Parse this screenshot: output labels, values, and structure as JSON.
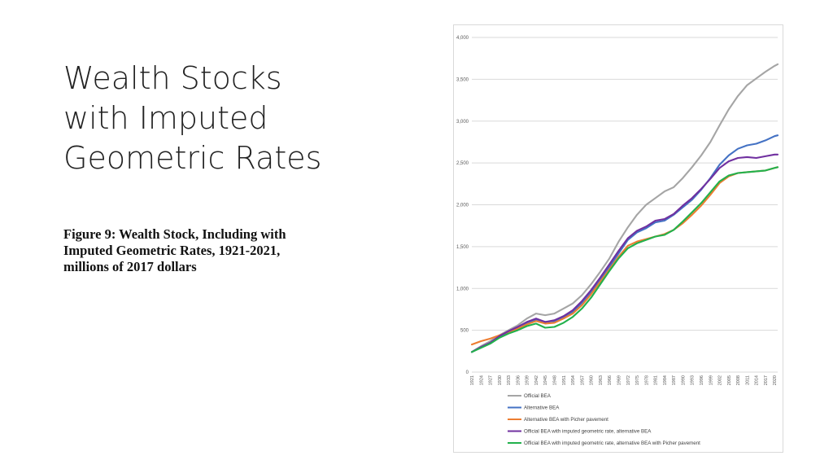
{
  "slide": {
    "title_lines": [
      "Wealth Stocks",
      "with Imputed",
      "Geometric Rates"
    ],
    "caption_lines": [
      "Figure 9: Wealth Stock, Including with",
      "Imputed Geometric Rates, 1921-2021,",
      "millions of 2017 dollars"
    ]
  },
  "chart_data": {
    "type": "line",
    "title": "",
    "xlabel": "",
    "ylabel": "",
    "ylim": [
      0,
      4000
    ],
    "y_ticks": [
      0,
      500,
      1000,
      1500,
      2000,
      2500,
      3000,
      3500,
      4000
    ],
    "y_tick_labels": [
      "0",
      "500",
      "1,000",
      "1,500",
      "2,000",
      "2,500",
      "3,000",
      "3,500",
      "4,000"
    ],
    "x_tick_labels": [
      "1921",
      "1924",
      "1927",
      "1930",
      "1933",
      "1936",
      "1939",
      "1942",
      "1945",
      "1948",
      "1951",
      "1954",
      "1957",
      "1960",
      "1963",
      "1966",
      "1969",
      "1972",
      "1975",
      "1978",
      "1981",
      "1984",
      "1987",
      "1990",
      "1993",
      "1996",
      "1999",
      "2002",
      "2005",
      "2008",
      "2011",
      "2014",
      "2017",
      "2020"
    ],
    "grid": true,
    "legend_position": "bottom",
    "x": [
      1921,
      1924,
      1927,
      1930,
      1933,
      1936,
      1939,
      1942,
      1945,
      1948,
      1951,
      1954,
      1957,
      1960,
      1963,
      1966,
      1969,
      1972,
      1975,
      1978,
      1981,
      1984,
      1987,
      1990,
      1993,
      1996,
      1999,
      2002,
      2005,
      2008,
      2011,
      2014,
      2017,
      2020,
      2021
    ],
    "series": [
      {
        "name": "Official BEA",
        "color": "#a5a5a5",
        "values": [
          240,
          310,
          370,
          440,
          500,
          560,
          640,
          700,
          680,
          700,
          760,
          820,
          920,
          1050,
          1200,
          1360,
          1560,
          1730,
          1880,
          2000,
          2080,
          2160,
          2210,
          2320,
          2450,
          2590,
          2750,
          2950,
          3140,
          3300,
          3430,
          3510,
          3590,
          3660,
          3680
        ]
      },
      {
        "name": "Alternative BEA",
        "color": "#4472c4",
        "values": [
          240,
          300,
          350,
          420,
          480,
          520,
          580,
          630,
          600,
          610,
          660,
          720,
          830,
          960,
          1110,
          1260,
          1420,
          1580,
          1670,
          1720,
          1790,
          1810,
          1880,
          1970,
          2060,
          2180,
          2320,
          2480,
          2590,
          2670,
          2710,
          2730,
          2770,
          2820,
          2830
        ]
      },
      {
        "name": "Alternative BEA with Picher pavement",
        "color": "#ed7d31",
        "values": [
          330,
          370,
          400,
          440,
          480,
          520,
          570,
          610,
          580,
          590,
          640,
          700,
          800,
          930,
          1080,
          1230,
          1380,
          1510,
          1560,
          1590,
          1620,
          1650,
          1700,
          1780,
          1880,
          1990,
          2120,
          2260,
          2340,
          2380,
          2390,
          2400,
          2410,
          2440,
          2450
        ]
      },
      {
        "name": "Official BEA with imputed geometric rate, alternative BEA",
        "color": "#7030a0",
        "values": [
          240,
          300,
          350,
          430,
          490,
          540,
          600,
          640,
          600,
          620,
          670,
          740,
          850,
          980,
          1130,
          1290,
          1450,
          1600,
          1690,
          1740,
          1810,
          1830,
          1890,
          1990,
          2080,
          2190,
          2310,
          2440,
          2520,
          2560,
          2570,
          2560,
          2580,
          2600,
          2600
        ]
      },
      {
        "name": "Official BEA with imputed geometric rate, alternative BEA with Picher pavement",
        "color": "#22b14c",
        "values": [
          240,
          290,
          340,
          410,
          460,
          500,
          550,
          580,
          530,
          540,
          590,
          660,
          760,
          890,
          1050,
          1210,
          1360,
          1480,
          1540,
          1580,
          1620,
          1640,
          1700,
          1800,
          1910,
          2020,
          2150,
          2280,
          2350,
          2380,
          2390,
          2400,
          2410,
          2440,
          2450
        ]
      }
    ]
  }
}
